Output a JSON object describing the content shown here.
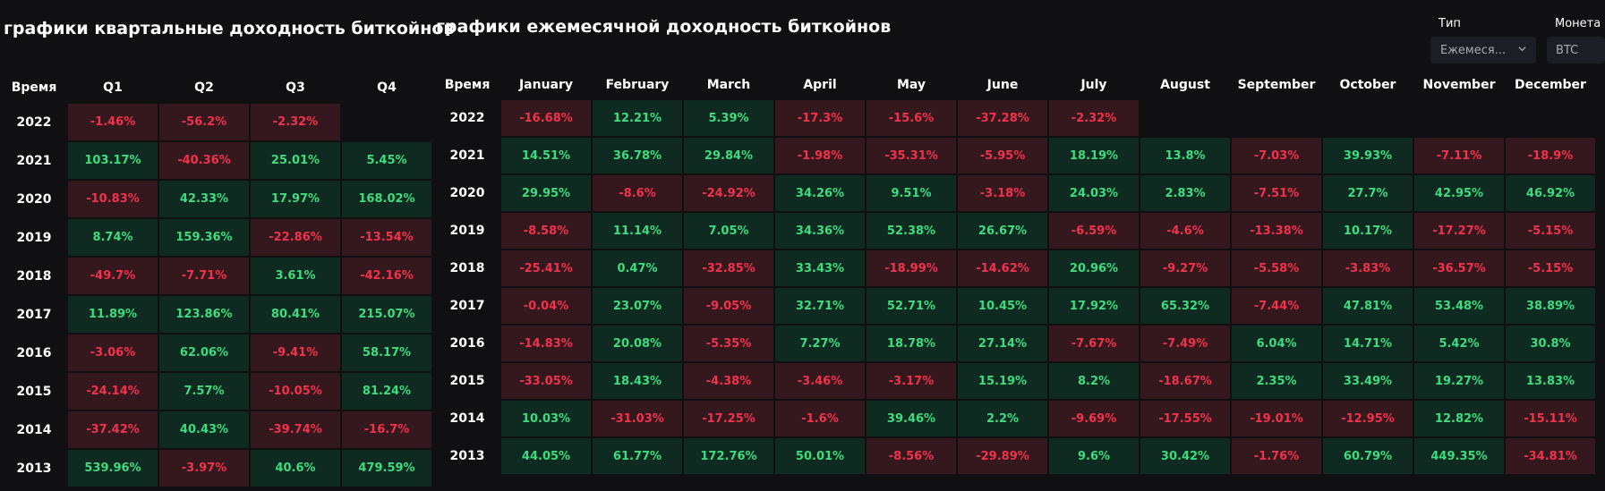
{
  "quarterly": {
    "title": "графики квартальные доходность биткойнов",
    "year_header": "Время",
    "headers": [
      "Q1",
      "Q2",
      "Q3",
      "Q4"
    ],
    "rows": [
      {
        "year": "2022",
        "values": [
          "-1.46%",
          "-56.2%",
          "-2.32%",
          ""
        ]
      },
      {
        "year": "2021",
        "values": [
          "103.17%",
          "-40.36%",
          "25.01%",
          "5.45%"
        ]
      },
      {
        "year": "2020",
        "values": [
          "-10.83%",
          "42.33%",
          "17.97%",
          "168.02%"
        ]
      },
      {
        "year": "2019",
        "values": [
          "8.74%",
          "159.36%",
          "-22.86%",
          "-13.54%"
        ]
      },
      {
        "year": "2018",
        "values": [
          "-49.7%",
          "-7.71%",
          "3.61%",
          "-42.16%"
        ]
      },
      {
        "year": "2017",
        "values": [
          "11.89%",
          "123.86%",
          "80.41%",
          "215.07%"
        ]
      },
      {
        "year": "2016",
        "values": [
          "-3.06%",
          "62.06%",
          "-9.41%",
          "58.17%"
        ]
      },
      {
        "year": "2015",
        "values": [
          "-24.14%",
          "7.57%",
          "-10.05%",
          "81.24%"
        ]
      },
      {
        "year": "2014",
        "values": [
          "-37.42%",
          "40.43%",
          "-39.74%",
          "-16.7%"
        ]
      },
      {
        "year": "2013",
        "values": [
          "539.96%",
          "-3.97%",
          "40.6%",
          "479.59%"
        ]
      }
    ]
  },
  "monthly": {
    "title": "графики ежемесячной доходность биткойнов",
    "year_header": "Время",
    "headers": [
      "January",
      "February",
      "March",
      "April",
      "May",
      "June",
      "July",
      "August",
      "September",
      "October",
      "November",
      "December"
    ],
    "rows": [
      {
        "year": "2022",
        "values": [
          "-16.68%",
          "12.21%",
          "5.39%",
          "-17.3%",
          "-15.6%",
          "-37.28%",
          "-2.32%",
          "",
          "",
          "",
          "",
          ""
        ]
      },
      {
        "year": "2021",
        "values": [
          "14.51%",
          "36.78%",
          "29.84%",
          "-1.98%",
          "-35.31%",
          "-5.95%",
          "18.19%",
          "13.8%",
          "-7.03%",
          "39.93%",
          "-7.11%",
          "-18.9%"
        ]
      },
      {
        "year": "2020",
        "values": [
          "29.95%",
          "-8.6%",
          "-24.92%",
          "34.26%",
          "9.51%",
          "-3.18%",
          "24.03%",
          "2.83%",
          "-7.51%",
          "27.7%",
          "42.95%",
          "46.92%"
        ]
      },
      {
        "year": "2019",
        "values": [
          "-8.58%",
          "11.14%",
          "7.05%",
          "34.36%",
          "52.38%",
          "26.67%",
          "-6.59%",
          "-4.6%",
          "-13.38%",
          "10.17%",
          "-17.27%",
          "-5.15%"
        ]
      },
      {
        "year": "2018",
        "values": [
          "-25.41%",
          "0.47%",
          "-32.85%",
          "33.43%",
          "-18.99%",
          "-14.62%",
          "20.96%",
          "-9.27%",
          "-5.58%",
          "-3.83%",
          "-36.57%",
          "-5.15%"
        ]
      },
      {
        "year": "2017",
        "values": [
          "-0.04%",
          "23.07%",
          "-9.05%",
          "32.71%",
          "52.71%",
          "10.45%",
          "17.92%",
          "65.32%",
          "-7.44%",
          "47.81%",
          "53.48%",
          "38.89%"
        ]
      },
      {
        "year": "2016",
        "values": [
          "-14.83%",
          "20.08%",
          "-5.35%",
          "7.27%",
          "18.78%",
          "27.14%",
          "-7.67%",
          "-7.49%",
          "6.04%",
          "14.71%",
          "5.42%",
          "30.8%"
        ]
      },
      {
        "year": "2015",
        "values": [
          "-33.05%",
          "18.43%",
          "-4.38%",
          "-3.46%",
          "-3.17%",
          "15.19%",
          "8.2%",
          "-18.67%",
          "2.35%",
          "33.49%",
          "19.27%",
          "13.83%"
        ]
      },
      {
        "year": "2014",
        "values": [
          "10.03%",
          "-31.03%",
          "-17.25%",
          "-1.6%",
          "39.46%",
          "2.2%",
          "-9.69%",
          "-17.55%",
          "-19.01%",
          "-12.95%",
          "12.82%",
          "-15.11%"
        ]
      },
      {
        "year": "2013",
        "values": [
          "44.05%",
          "61.77%",
          "172.76%",
          "50.01%",
          "-8.56%",
          "-29.89%",
          "9.6%",
          "30.42%",
          "-1.76%",
          "60.79%",
          "449.35%",
          "-34.81%"
        ]
      }
    ]
  },
  "filters": {
    "type_label": "Тип",
    "type_value": "Ежемеся...",
    "coin_label": "Монета",
    "coin_value": "BTC"
  },
  "colors": {
    "background": "#101012",
    "positive_text": "#3ddc7e",
    "positive_bg": "#0f2a20",
    "negative_text": "#f1324b",
    "negative_bg": "#35181e"
  },
  "icons": {
    "type_select_icon": "chevron-down-icon"
  }
}
